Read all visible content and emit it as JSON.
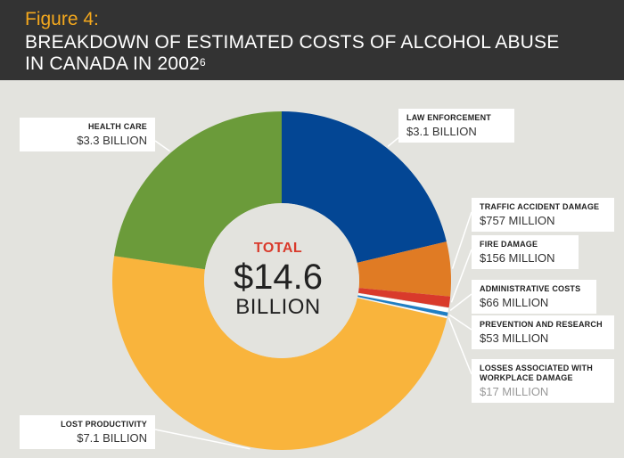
{
  "header": {
    "figure_label": "Figure 4:",
    "title_line1": "BREAKDOWN OF ESTIMATED COSTS OF ALCOHOL ABUSE",
    "title_line2": "IN CANADA IN 2002",
    "footnote": "6"
  },
  "colors": {
    "header_bg": "#333333",
    "figure_label": "#f4a81d",
    "total_label": "#d93a2b",
    "background": "#e3e3de"
  },
  "center": {
    "total_label": "TOTAL",
    "amount": "$14.6",
    "unit": "BILLION"
  },
  "chart_data": {
    "type": "pie",
    "donut": true,
    "unit": "million CAD",
    "slices": [
      {
        "name": "LAW ENFORCEMENT",
        "display": "$3.1 BILLION",
        "value": 3100,
        "color": "#034694"
      },
      {
        "name": "TRAFFIC ACCIDENT DAMAGE",
        "display": "$757 MILLION",
        "value": 757,
        "color": "#e07b24"
      },
      {
        "name": "FIRE DAMAGE",
        "display": "$156 MILLION",
        "value": 156,
        "color": "#d93a2b"
      },
      {
        "name": "ADMINISTRATIVE COSTS",
        "display": "$66 MILLION",
        "value": 66,
        "color": "#ffffff"
      },
      {
        "name": "PREVENTION AND RESEARCH",
        "display": "$53 MILLION",
        "value": 53,
        "color": "#1f7fc4"
      },
      {
        "name": "LOSSES ASSOCIATED WITH WORKPLACE DAMAGE",
        "display": "$17 MILLION",
        "value": 17,
        "color": "#ffffff"
      },
      {
        "name": "LOST PRODUCTIVITY",
        "display": "$7.1 BILLION",
        "value": 7100,
        "color": "#f9b43c"
      },
      {
        "name": "HEALTH CARE",
        "display": "$3.3 BILLION",
        "value": 3300,
        "color": "#6b9b3a"
      }
    ]
  },
  "labels": {
    "law_enforcement": {
      "name": "LAW ENFORCEMENT",
      "value": "$3.1 BILLION"
    },
    "traffic": {
      "name": "TRAFFIC ACCIDENT DAMAGE",
      "value": "$757 MILLION"
    },
    "fire": {
      "name": "FIRE DAMAGE",
      "value": "$156 MILLION"
    },
    "admin": {
      "name": "ADMINISTRATIVE COSTS",
      "value": "$66 MILLION"
    },
    "prevention": {
      "name": "PREVENTION AND RESEARCH",
      "value": "$53 MILLION"
    },
    "workplace": {
      "name_line1": "LOSSES ASSOCIATED WITH",
      "name_line2": "WORKPLACE DAMAGE",
      "value": "$17 MILLION"
    },
    "lost_productivity": {
      "name": "LOST PRODUCTIVITY",
      "value": "$7.1 BILLION"
    },
    "health_care": {
      "name": "HEALTH CARE",
      "value": "$3.3 BILLION"
    }
  }
}
